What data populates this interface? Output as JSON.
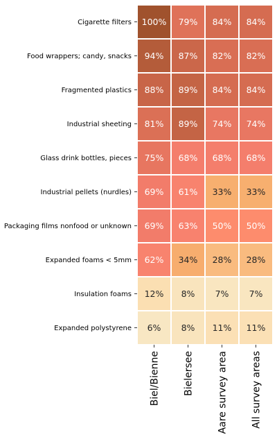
{
  "chart_data": {
    "type": "heatmap",
    "rows": [
      "Cigarette filters",
      "Food wrappers; candy, snacks",
      "Fragmented plastics",
      "Industrial sheeting",
      "Glass drink bottles, pieces",
      "Industrial pellets (nurdles)",
      "Packaging films nonfood or unknown",
      "Expanded foams < 5mm",
      "Insulation foams",
      "Expanded polystyrene"
    ],
    "columns": [
      "Biel/Bienne",
      "Bielersee",
      "Aare survey area",
      "All survey areas"
    ],
    "values": [
      [
        100,
        79,
        84,
        84
      ],
      [
        94,
        87,
        82,
        82
      ],
      [
        88,
        89,
        84,
        84
      ],
      [
        81,
        89,
        74,
        74
      ],
      [
        75,
        68,
        68,
        68
      ],
      [
        69,
        61,
        33,
        33
      ],
      [
        69,
        63,
        50,
        50
      ],
      [
        62,
        34,
        28,
        28
      ],
      [
        12,
        8,
        7,
        7
      ],
      [
        6,
        8,
        11,
        11
      ]
    ],
    "value_suffix": "%",
    "colormap": [
      "#f5f0d5",
      "#fed8a4",
      "#f7ae6e",
      "#fd8c6d",
      "#f67f6e",
      "#d76d52",
      "#a0522d"
    ],
    "colorbar": false,
    "grid_lines_color": "#ffffff"
  }
}
